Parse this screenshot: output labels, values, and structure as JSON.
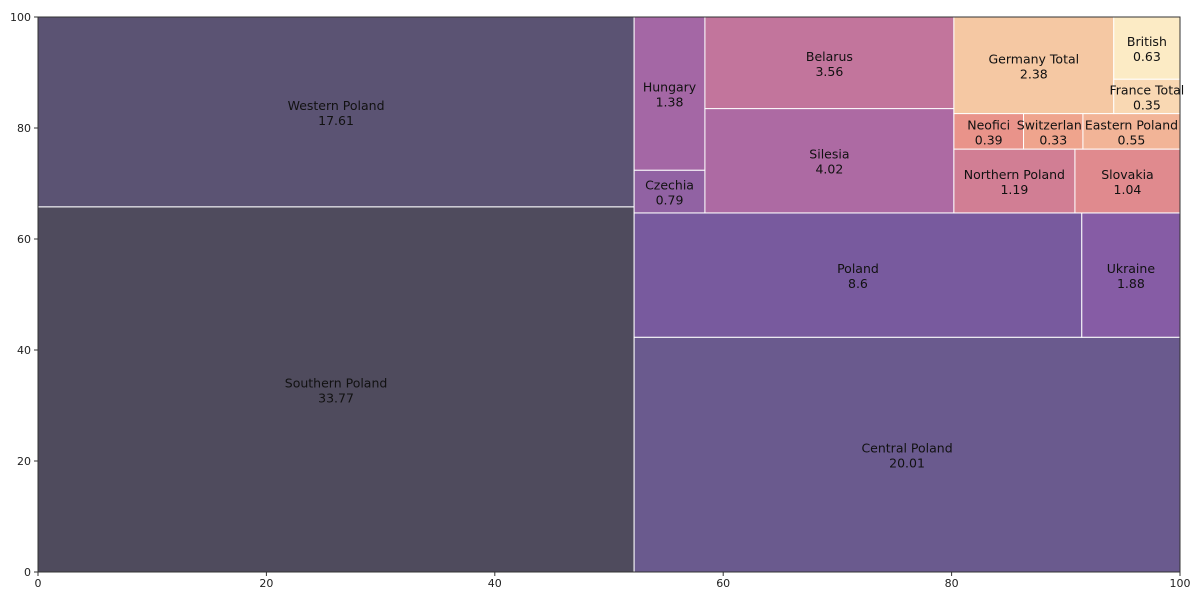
{
  "chart_data": {
    "type": "treemap",
    "xlim": [
      0,
      100
    ],
    "ylim": [
      0,
      100
    ],
    "xticks": [
      0,
      20,
      40,
      60,
      80,
      100
    ],
    "yticks": [
      0,
      20,
      40,
      60,
      80,
      100
    ],
    "grid": false,
    "legend": "none",
    "tiles": [
      {
        "label": "Southern Poland",
        "value": "33.77",
        "x": 0,
        "y": 0,
        "w": 52.2,
        "h": 65.8,
        "color": "#4f4b5d"
      },
      {
        "label": "Western Poland",
        "value": "17.61",
        "x": 0,
        "y": 65.8,
        "w": 52.2,
        "h": 34.2,
        "color": "#5b5373"
      },
      {
        "label": "Central Poland",
        "value": "20.01",
        "x": 52.2,
        "y": 0,
        "w": 47.8,
        "h": 42.3,
        "color": "#6a5a8e"
      },
      {
        "label": "Poland",
        "value": "8.6",
        "x": 52.2,
        "y": 42.3,
        "w": 39.2,
        "h": 22.4,
        "color": "#785a9e"
      },
      {
        "label": "Ukraine",
        "value": "1.88",
        "x": 91.4,
        "y": 42.3,
        "w": 8.6,
        "h": 22.4,
        "color": "#865ca5"
      },
      {
        "label": "Czechia",
        "value": "0.79",
        "x": 52.2,
        "y": 64.7,
        "w": 6.2,
        "h": 7.7,
        "color": "#9162a3"
      },
      {
        "label": "Hungary",
        "value": "1.38",
        "x": 52.2,
        "y": 72.4,
        "w": 6.2,
        "h": 27.6,
        "color": "#a467a5"
      },
      {
        "label": "Silesia",
        "value": "4.02",
        "x": 58.4,
        "y": 64.7,
        "w": 21.8,
        "h": 18.8,
        "color": "#ad6aa3"
      },
      {
        "label": "Belarus",
        "value": "3.56",
        "x": 58.4,
        "y": 83.5,
        "w": 21.8,
        "h": 16.5,
        "color": "#c2759c"
      },
      {
        "label": "Northern Poland",
        "value": "1.19",
        "x": 80.2,
        "y": 64.7,
        "w": 10.6,
        "h": 11.5,
        "color": "#d17e94"
      },
      {
        "label": "Slovakia",
        "value": "1.04",
        "x": 90.8,
        "y": 64.7,
        "w": 9.2,
        "h": 11.5,
        "color": "#e08a8e"
      },
      {
        "label": "Neofici",
        "value": "0.39",
        "x": 80.2,
        "y": 76.2,
        "w": 6.1,
        "h": 6.4,
        "color": "#e9938a"
      },
      {
        "label": "Switzerland",
        "value": "0.33",
        "x": 86.3,
        "y": 76.2,
        "w": 5.2,
        "h": 6.4,
        "color": "#efa48d"
      },
      {
        "label": "Eastern Poland",
        "value": "0.55",
        "x": 91.5,
        "y": 76.2,
        "w": 8.5,
        "h": 6.4,
        "color": "#f2b497"
      },
      {
        "label": "Germany Total",
        "value": "2.38",
        "x": 80.2,
        "y": 82.6,
        "w": 14.0,
        "h": 17.4,
        "color": "#f5c8a3"
      },
      {
        "label": "France Total",
        "value": "0.35",
        "x": 94.2,
        "y": 82.6,
        "w": 5.8,
        "h": 6.2,
        "color": "#f9d8b3"
      },
      {
        "label": "British",
        "value": "0.63",
        "x": 94.2,
        "y": 88.8,
        "w": 5.8,
        "h": 11.2,
        "color": "#fcebc5"
      }
    ]
  }
}
